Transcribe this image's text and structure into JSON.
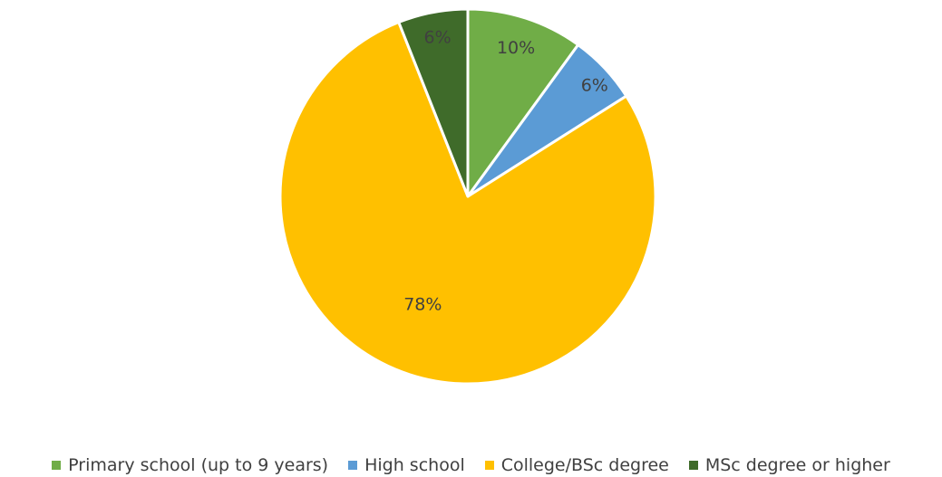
{
  "chart_data": {
    "type": "pie",
    "categories": [
      "Primary school (up to 9 years)",
      "High school",
      "College/BSc degree",
      "MSc degree or higher"
    ],
    "values": [
      10,
      6,
      78,
      6
    ],
    "data_labels": [
      "10%",
      "6%",
      "78%",
      "6%"
    ],
    "colors": [
      "#70ad47",
      "#5b9bd5",
      "#ffc000",
      "#3f6b2a"
    ],
    "start_angle_deg": 0,
    "direction": "clockwise",
    "legend_position": "bottom"
  }
}
